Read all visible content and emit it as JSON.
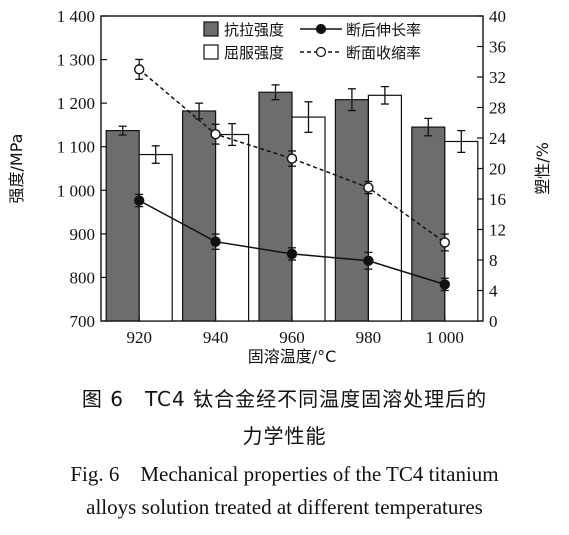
{
  "chart_data": {
    "type": "bar",
    "categories": [
      "920",
      "940",
      "960",
      "980",
      "1 000"
    ],
    "xlabel": "固溶温度/°C",
    "ylabel_left": "强度/MPa",
    "ylabel_right": "塑性/%",
    "ylim_left": [
      700,
      1400
    ],
    "yticks_left": [
      "700",
      "800",
      "900",
      "1 000",
      "1 100",
      "1 200",
      "1 300",
      "1 400"
    ],
    "ylim_right": [
      0,
      40
    ],
    "yticks_right": [
      "0",
      "4",
      "8",
      "12",
      "16",
      "20",
      "24",
      "28",
      "32",
      "36",
      "40"
    ],
    "legend_position": "top",
    "bar_series": [
      {
        "name": "抗拉强度",
        "color": "#6d6d6d",
        "values": [
          1137,
          1182,
          1225,
          1208,
          1145
        ],
        "errors": [
          10,
          18,
          17,
          25,
          20
        ]
      },
      {
        "name": "屈服强度",
        "color": "#ffffff",
        "values": [
          1082,
          1128,
          1168,
          1218,
          1112
        ],
        "errors": [
          20,
          25,
          35,
          20,
          25
        ]
      }
    ],
    "line_series": [
      {
        "name": "断后伸长率",
        "style": "solid",
        "marker": "filled-circle",
        "values": [
          15.8,
          10.4,
          8.8,
          7.9,
          4.8
        ],
        "errors": [
          0.8,
          1.0,
          0.8,
          1.1,
          0.8
        ]
      },
      {
        "name": "断面收缩率",
        "style": "dashed",
        "marker": "open-circle",
        "values": [
          33.0,
          24.5,
          21.3,
          17.5,
          10.3
        ],
        "errors": [
          1.3,
          1.3,
          1.0,
          0.8,
          1.1
        ]
      }
    ]
  },
  "caption": {
    "cn_line1": "图 6　TC4 钛合金经不同温度固溶处理后的",
    "cn_line2": "力学性能",
    "en_line1": "Fig. 6　Mechanical properties of the TC4 titanium",
    "en_line2": "alloys solution treated at different temperatures"
  }
}
